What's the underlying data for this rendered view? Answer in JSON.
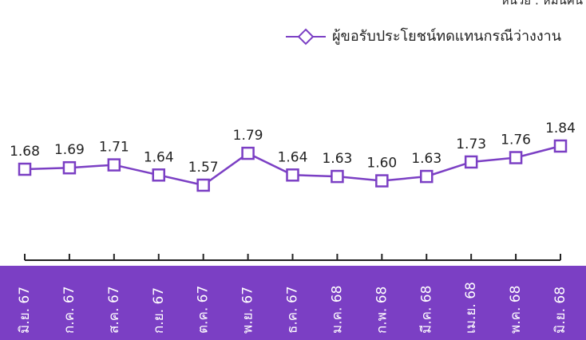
{
  "chart_data": {
    "type": "line",
    "unit": "หน่วย : หมื่นคน",
    "categories": [
      "มิ.ย. 67",
      "ก.ค. 67",
      "ส.ค. 67",
      "ก.ย. 67",
      "ต.ค. 67",
      "พ.ย. 67",
      "ธ.ค. 67",
      "ม.ค. 68",
      "ก.พ. 68",
      "มี.ค. 68",
      "เม.ย. 68",
      "พ.ค. 68",
      "มิ.ย. 68"
    ],
    "series": [
      {
        "name": "ผู้ขอรับประโยชน์ทดแทนกรณีว่างงาน",
        "color": "#7b3fc4",
        "values": [
          1.68,
          1.69,
          1.71,
          1.64,
          1.57,
          1.79,
          1.64,
          1.63,
          1.6,
          1.63,
          1.73,
          1.76,
          1.84
        ],
        "value_labels": [
          "1.68",
          "1.69",
          "1.71",
          "1.64",
          "1.57",
          "1.79",
          "1.64",
          "1.63",
          "1.60",
          "1.63",
          "1.73",
          "1.76",
          "1.84"
        ]
      }
    ]
  }
}
